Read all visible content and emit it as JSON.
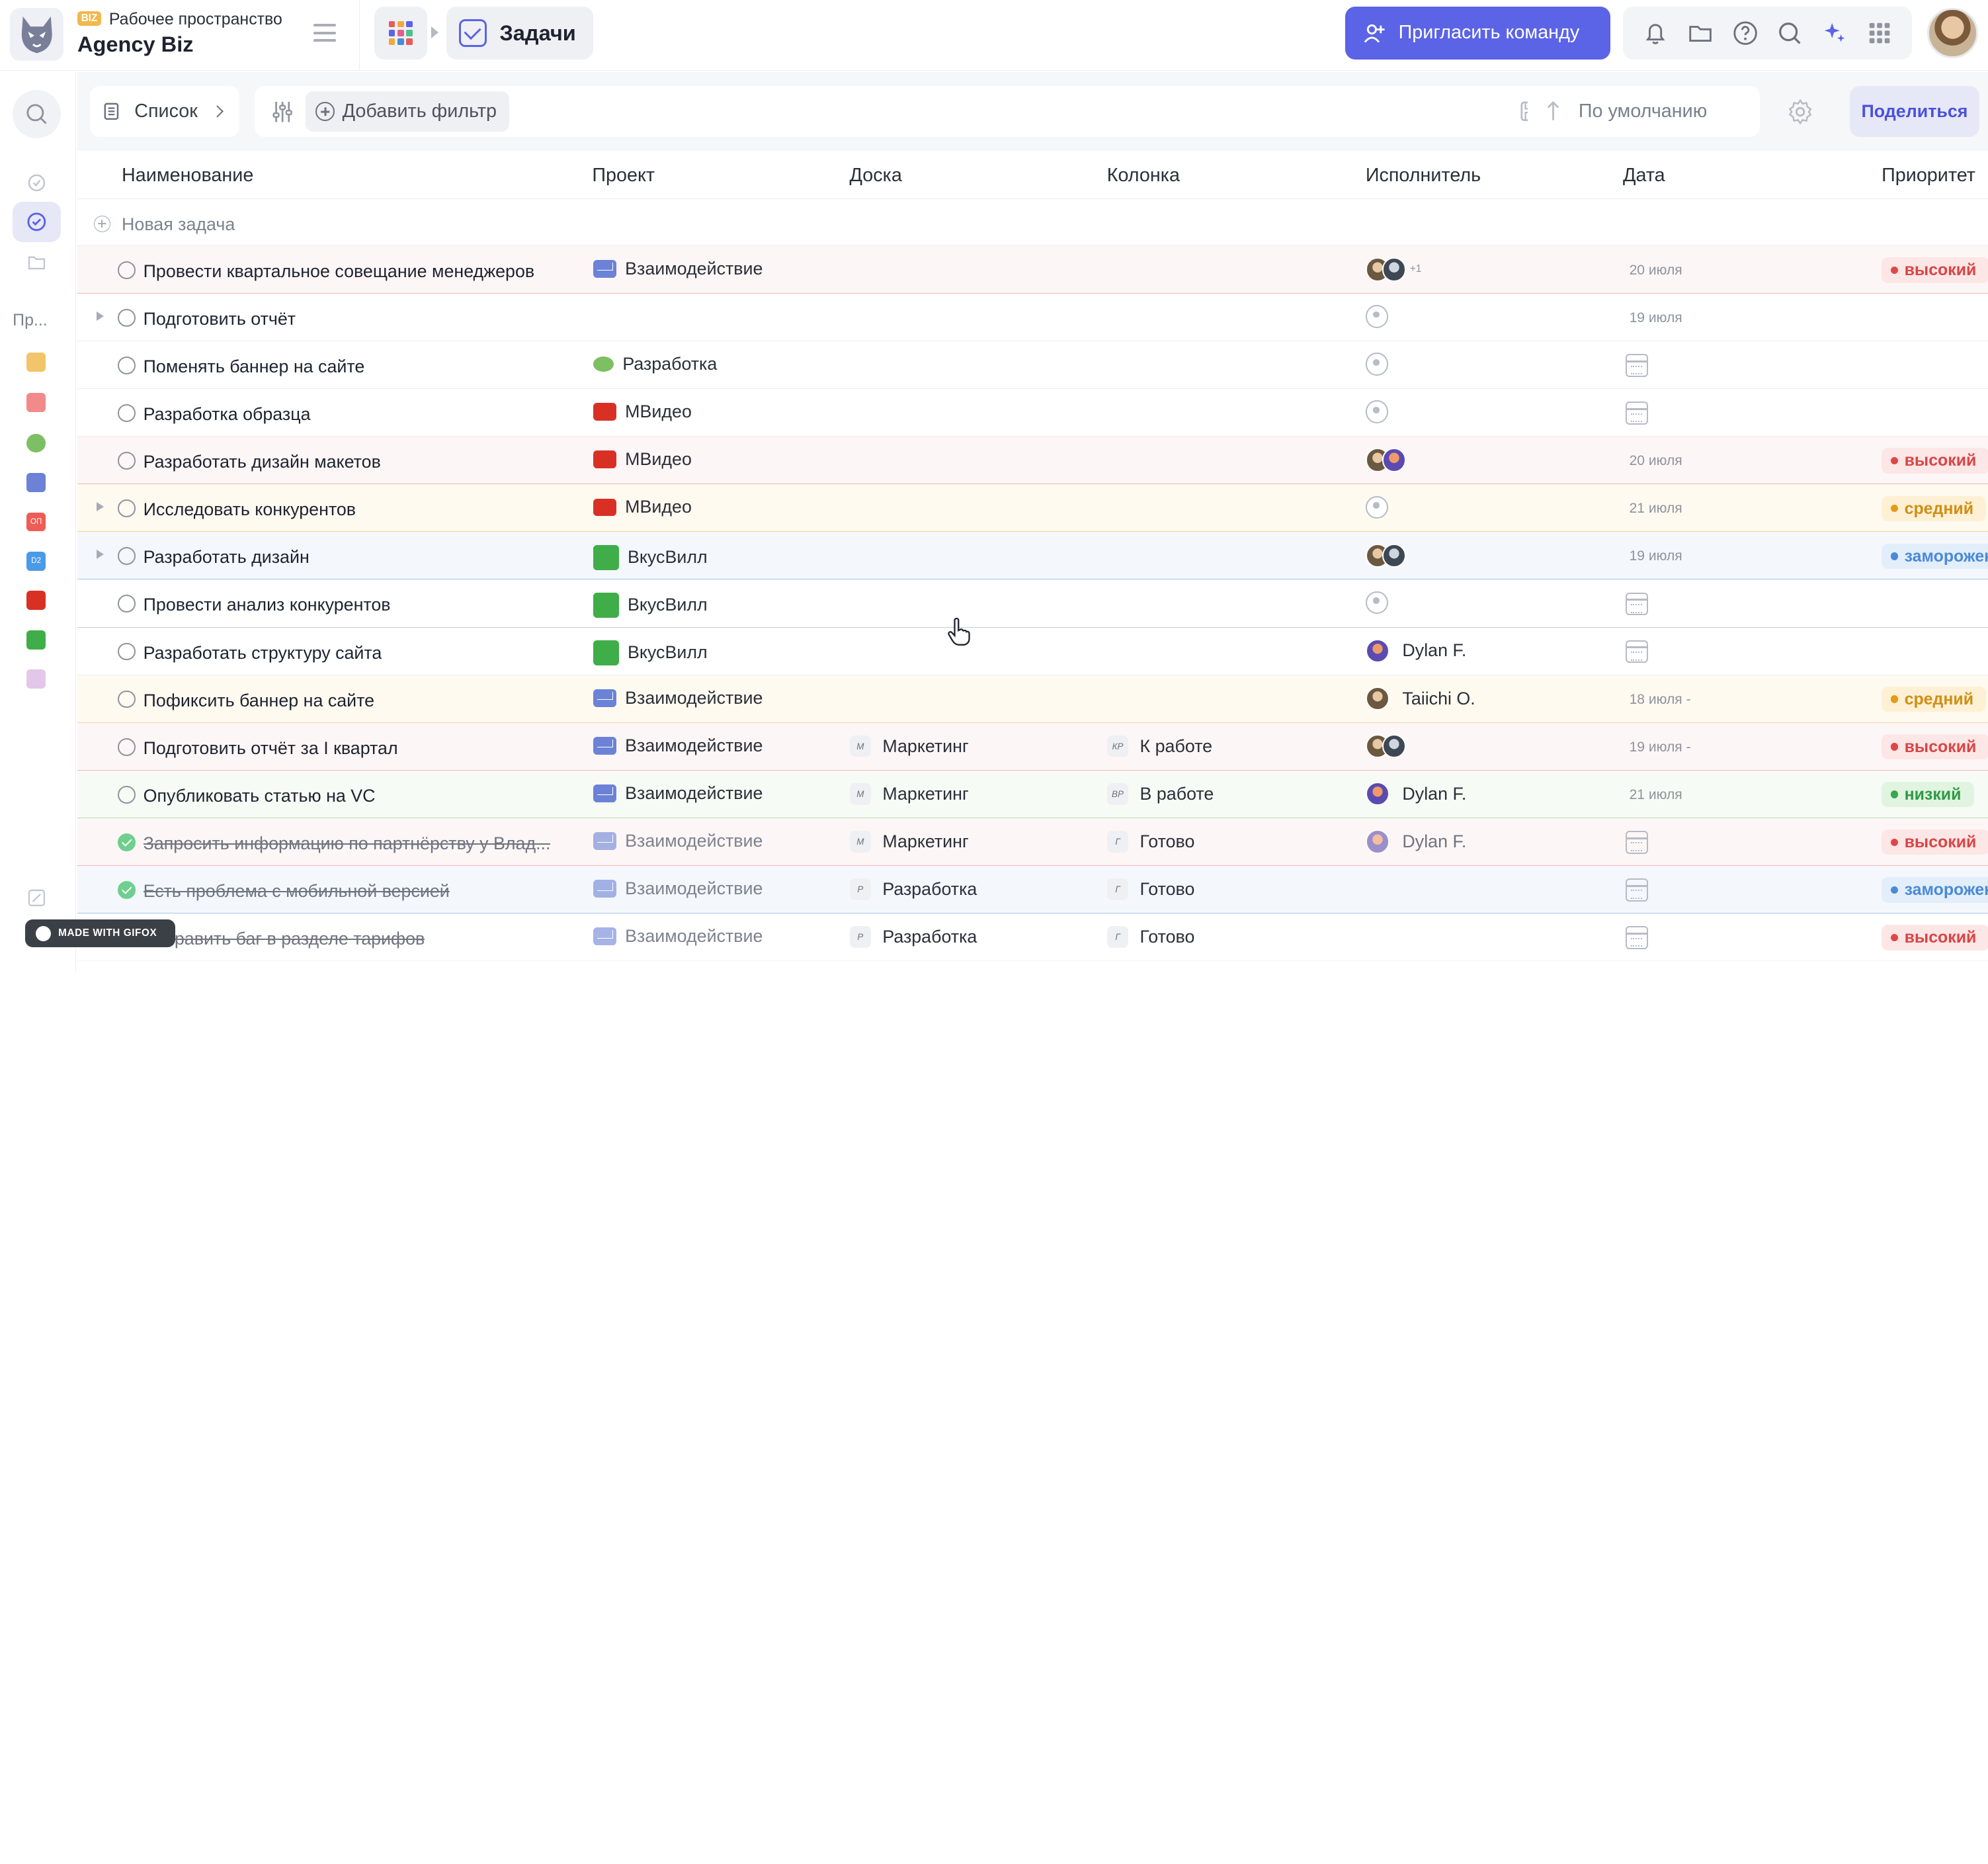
{
  "workspace": {
    "badge": "BIZ",
    "label": "Рабочее пространство",
    "name": "Agency Biz"
  },
  "header": {
    "page_title": "Задачи",
    "invite_label": "Пригласить команду"
  },
  "rail": {
    "section_label": "Пр..."
  },
  "toolbar": {
    "view_label": "Список",
    "add_filter_label": "Добавить фильтр",
    "sort_label": "По умолчанию",
    "share_label": "Поделиться"
  },
  "table": {
    "columns": [
      "Наименование",
      "Проект",
      "Доска",
      "Колонка",
      "Исполнитель",
      "Дата",
      "Приоритет"
    ],
    "new_task_label": "Новая задача",
    "rows": [
      {
        "name": "Провести квартальное совещание менеджеров",
        "project": "Взаимодействие",
        "project_icon": "envelope-icon",
        "board": "",
        "board_abbr": "",
        "column": "",
        "column_abbr": "",
        "assignee_name": "",
        "assignee_more": "+1",
        "date": "20 июля",
        "priority": "высокий"
      },
      {
        "name": "Подготовить отчёт",
        "project": "",
        "board": "",
        "board_abbr": "",
        "column": "",
        "column_abbr": "",
        "assignee_name": "",
        "date": "19 июля",
        "priority": ""
      },
      {
        "name": "Поменять баннер на сайте",
        "project": "Разработка",
        "project_icon": "frog-icon",
        "board": "",
        "board_abbr": "",
        "column": "",
        "column_abbr": "",
        "assignee_name": "",
        "date": "",
        "priority": ""
      },
      {
        "name": "Разработка образца",
        "project": "МВидео",
        "project_icon": "mvideo-logo-icon",
        "board": "",
        "board_abbr": "",
        "column": "",
        "column_abbr": "",
        "assignee_name": "",
        "date": "",
        "priority": ""
      },
      {
        "name": "Разработать дизайн макетов",
        "project": "МВидео",
        "project_icon": "mvideo-logo-icon",
        "board": "",
        "board_abbr": "",
        "column": "",
        "column_abbr": "",
        "assignee_name": "",
        "date": "20 июля",
        "priority": "высокий"
      },
      {
        "name": "Исследовать конкурентов",
        "project": "МВидео",
        "project_icon": "mvideo-logo-icon",
        "board": "",
        "board_abbr": "",
        "column": "",
        "column_abbr": "",
        "assignee_name": "",
        "date": "21 июля",
        "priority": "средний"
      },
      {
        "name": "Разработать дизайн",
        "project": "ВкусВилл",
        "project_icon": "vkusvill-logo-icon",
        "board": "",
        "board_abbr": "",
        "column": "",
        "column_abbr": "",
        "assignee_name": "",
        "date": "19 июля",
        "priority": "заморожен"
      },
      {
        "name": "Провести анализ конкурентов",
        "project": "ВкусВилл",
        "project_icon": "vkusvill-logo-icon",
        "board": "",
        "board_abbr": "",
        "column": "",
        "column_abbr": "",
        "assignee_name": "",
        "date": "",
        "priority": ""
      },
      {
        "name": "Разработать структуру сайта",
        "project": "ВкусВилл",
        "project_icon": "vkusvill-logo-icon",
        "board": "",
        "board_abbr": "",
        "column": "",
        "column_abbr": "",
        "assignee_name": "Dylan F.",
        "date": "",
        "priority": ""
      },
      {
        "name": "Пофиксить баннер на сайте",
        "project": "Взаимодействие",
        "project_icon": "envelope-icon",
        "board": "",
        "board_abbr": "",
        "column": "",
        "column_abbr": "",
        "assignee_name": "Taiichi O.",
        "date": "18 июля -",
        "priority": "средний"
      },
      {
        "name": "Подготовить отчёт за I квартал",
        "project": "Взаимодействие",
        "project_icon": "envelope-icon",
        "board": "Маркетинг",
        "board_abbr": "M",
        "column": "К работе",
        "column_abbr": "КР",
        "assignee_name": "",
        "date": "19 июля -",
        "priority": "высокий"
      },
      {
        "name": "Опубликовать статью на VC",
        "project": "Взаимодействие",
        "project_icon": "envelope-icon",
        "board": "Маркетинг",
        "board_abbr": "M",
        "column": "В работе",
        "column_abbr": "ВР",
        "assignee_name": "Dylan F.",
        "date": "21 июля",
        "priority": "низкий"
      },
      {
        "name": "Запросить информацию по партнёрству у Влад...",
        "project": "Взаимодействие",
        "project_icon": "envelope-icon",
        "board": "Маркетинг",
        "board_abbr": "M",
        "column": "Готово",
        "column_abbr": "Г",
        "assignee_name": "Dylan F.",
        "date": "",
        "priority": "высокий"
      },
      {
        "name": "Есть проблема с мобильной версией",
        "project": "Взаимодействие",
        "project_icon": "envelope-icon",
        "board": "Разработка",
        "board_abbr": "Р",
        "column": "Готово",
        "column_abbr": "Г",
        "assignee_name": "",
        "date": "",
        "priority": "заморожен"
      },
      {
        "name": "Исправить баг в разделе тарифов",
        "project": "Взаимодействие",
        "project_icon": "envelope-icon",
        "board": "Разработка",
        "board_abbr": "Р",
        "column": "Готово",
        "column_abbr": "Г",
        "assignee_name": "",
        "date": "",
        "priority": "высокий"
      }
    ]
  },
  "watermark": {
    "label": "MADE WITH GIFOX"
  },
  "colors": {
    "accent": "#5b63e6",
    "high": "#e04646",
    "medium": "#e59c15",
    "frozen": "#4a8ad6",
    "low": "#37a94c"
  }
}
